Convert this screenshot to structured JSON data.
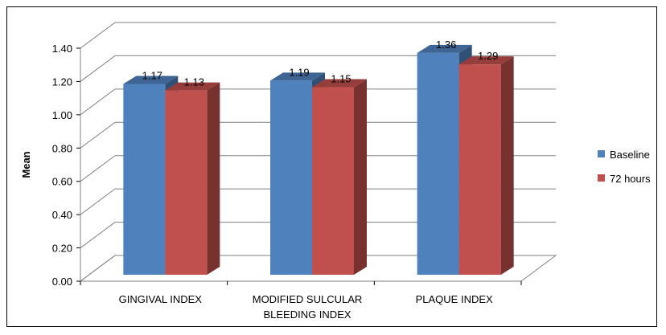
{
  "chart_data": {
    "type": "bar",
    "categories": [
      "GINGIVAL INDEX",
      "MODIFIED SULCULAR BLEEDING INDEX",
      "PLAQUE INDEX"
    ],
    "category_lines": [
      [
        "GINGIVAL INDEX"
      ],
      [
        "MODIFIED SULCULAR",
        "BLEEDING INDEX"
      ],
      [
        "PLAQUE INDEX"
      ]
    ],
    "series": [
      {
        "name": "Baseline",
        "values": [
          1.17,
          1.19,
          1.36
        ],
        "labels": [
          "1.17",
          "1.19",
          "1.36"
        ],
        "color": "#4F81BD"
      },
      {
        "name": "72 hours",
        "values": [
          1.13,
          1.15,
          1.29
        ],
        "labels": [
          "1.13",
          "1.15",
          "1.29"
        ],
        "color": "#C0504D"
      }
    ],
    "ylabel": "Mean",
    "xlabel": "",
    "ylim": [
      0,
      1.4
    ],
    "yticks": [
      "0.00",
      "0.20",
      "0.40",
      "0.60",
      "0.80",
      "1.00",
      "1.20",
      "1.40"
    ],
    "grid": true,
    "legend": "right",
    "style": "3d-clustered-column"
  }
}
